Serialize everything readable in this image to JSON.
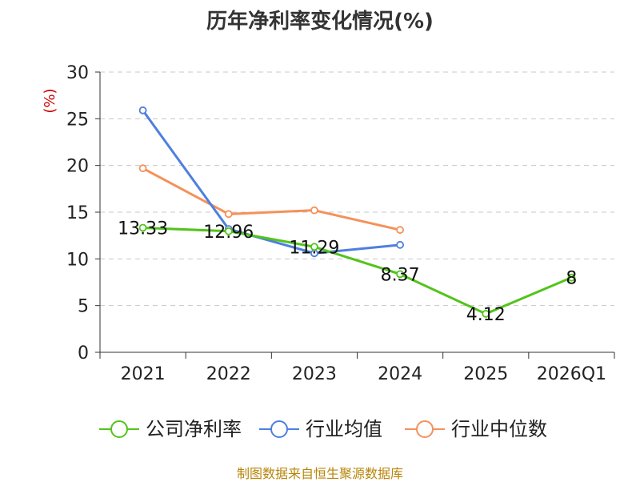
{
  "chart_data": {
    "type": "line",
    "title": "历年净利率变化情况(%)",
    "ylabel": "(%)",
    "xlabel": "",
    "categories": [
      "2021",
      "2022",
      "2023",
      "2024",
      "2025",
      "2026Q1"
    ],
    "ylim": [
      0,
      30
    ],
    "yticks": [
      0,
      5,
      10,
      15,
      20,
      25,
      30
    ],
    "grid": true,
    "legend_position": "bottom",
    "series": [
      {
        "name": "公司净利率",
        "color": "#52c41a",
        "values": [
          13.33,
          12.96,
          11.29,
          8.37,
          4.12,
          8
        ],
        "labels": [
          "13.33",
          "12.96",
          "11.29",
          "8.37",
          "4.12",
          "8"
        ]
      },
      {
        "name": "行业均值",
        "color": "#4e7fe0",
        "values": [
          25.9,
          13.2,
          10.6,
          11.5,
          null,
          null
        ],
        "labels": null
      },
      {
        "name": "行业中位数",
        "color": "#f5915a",
        "values": [
          19.7,
          14.8,
          15.2,
          13.1,
          null,
          null
        ],
        "labels": null
      }
    ]
  },
  "source": "制图数据来自恒生聚源数据库"
}
